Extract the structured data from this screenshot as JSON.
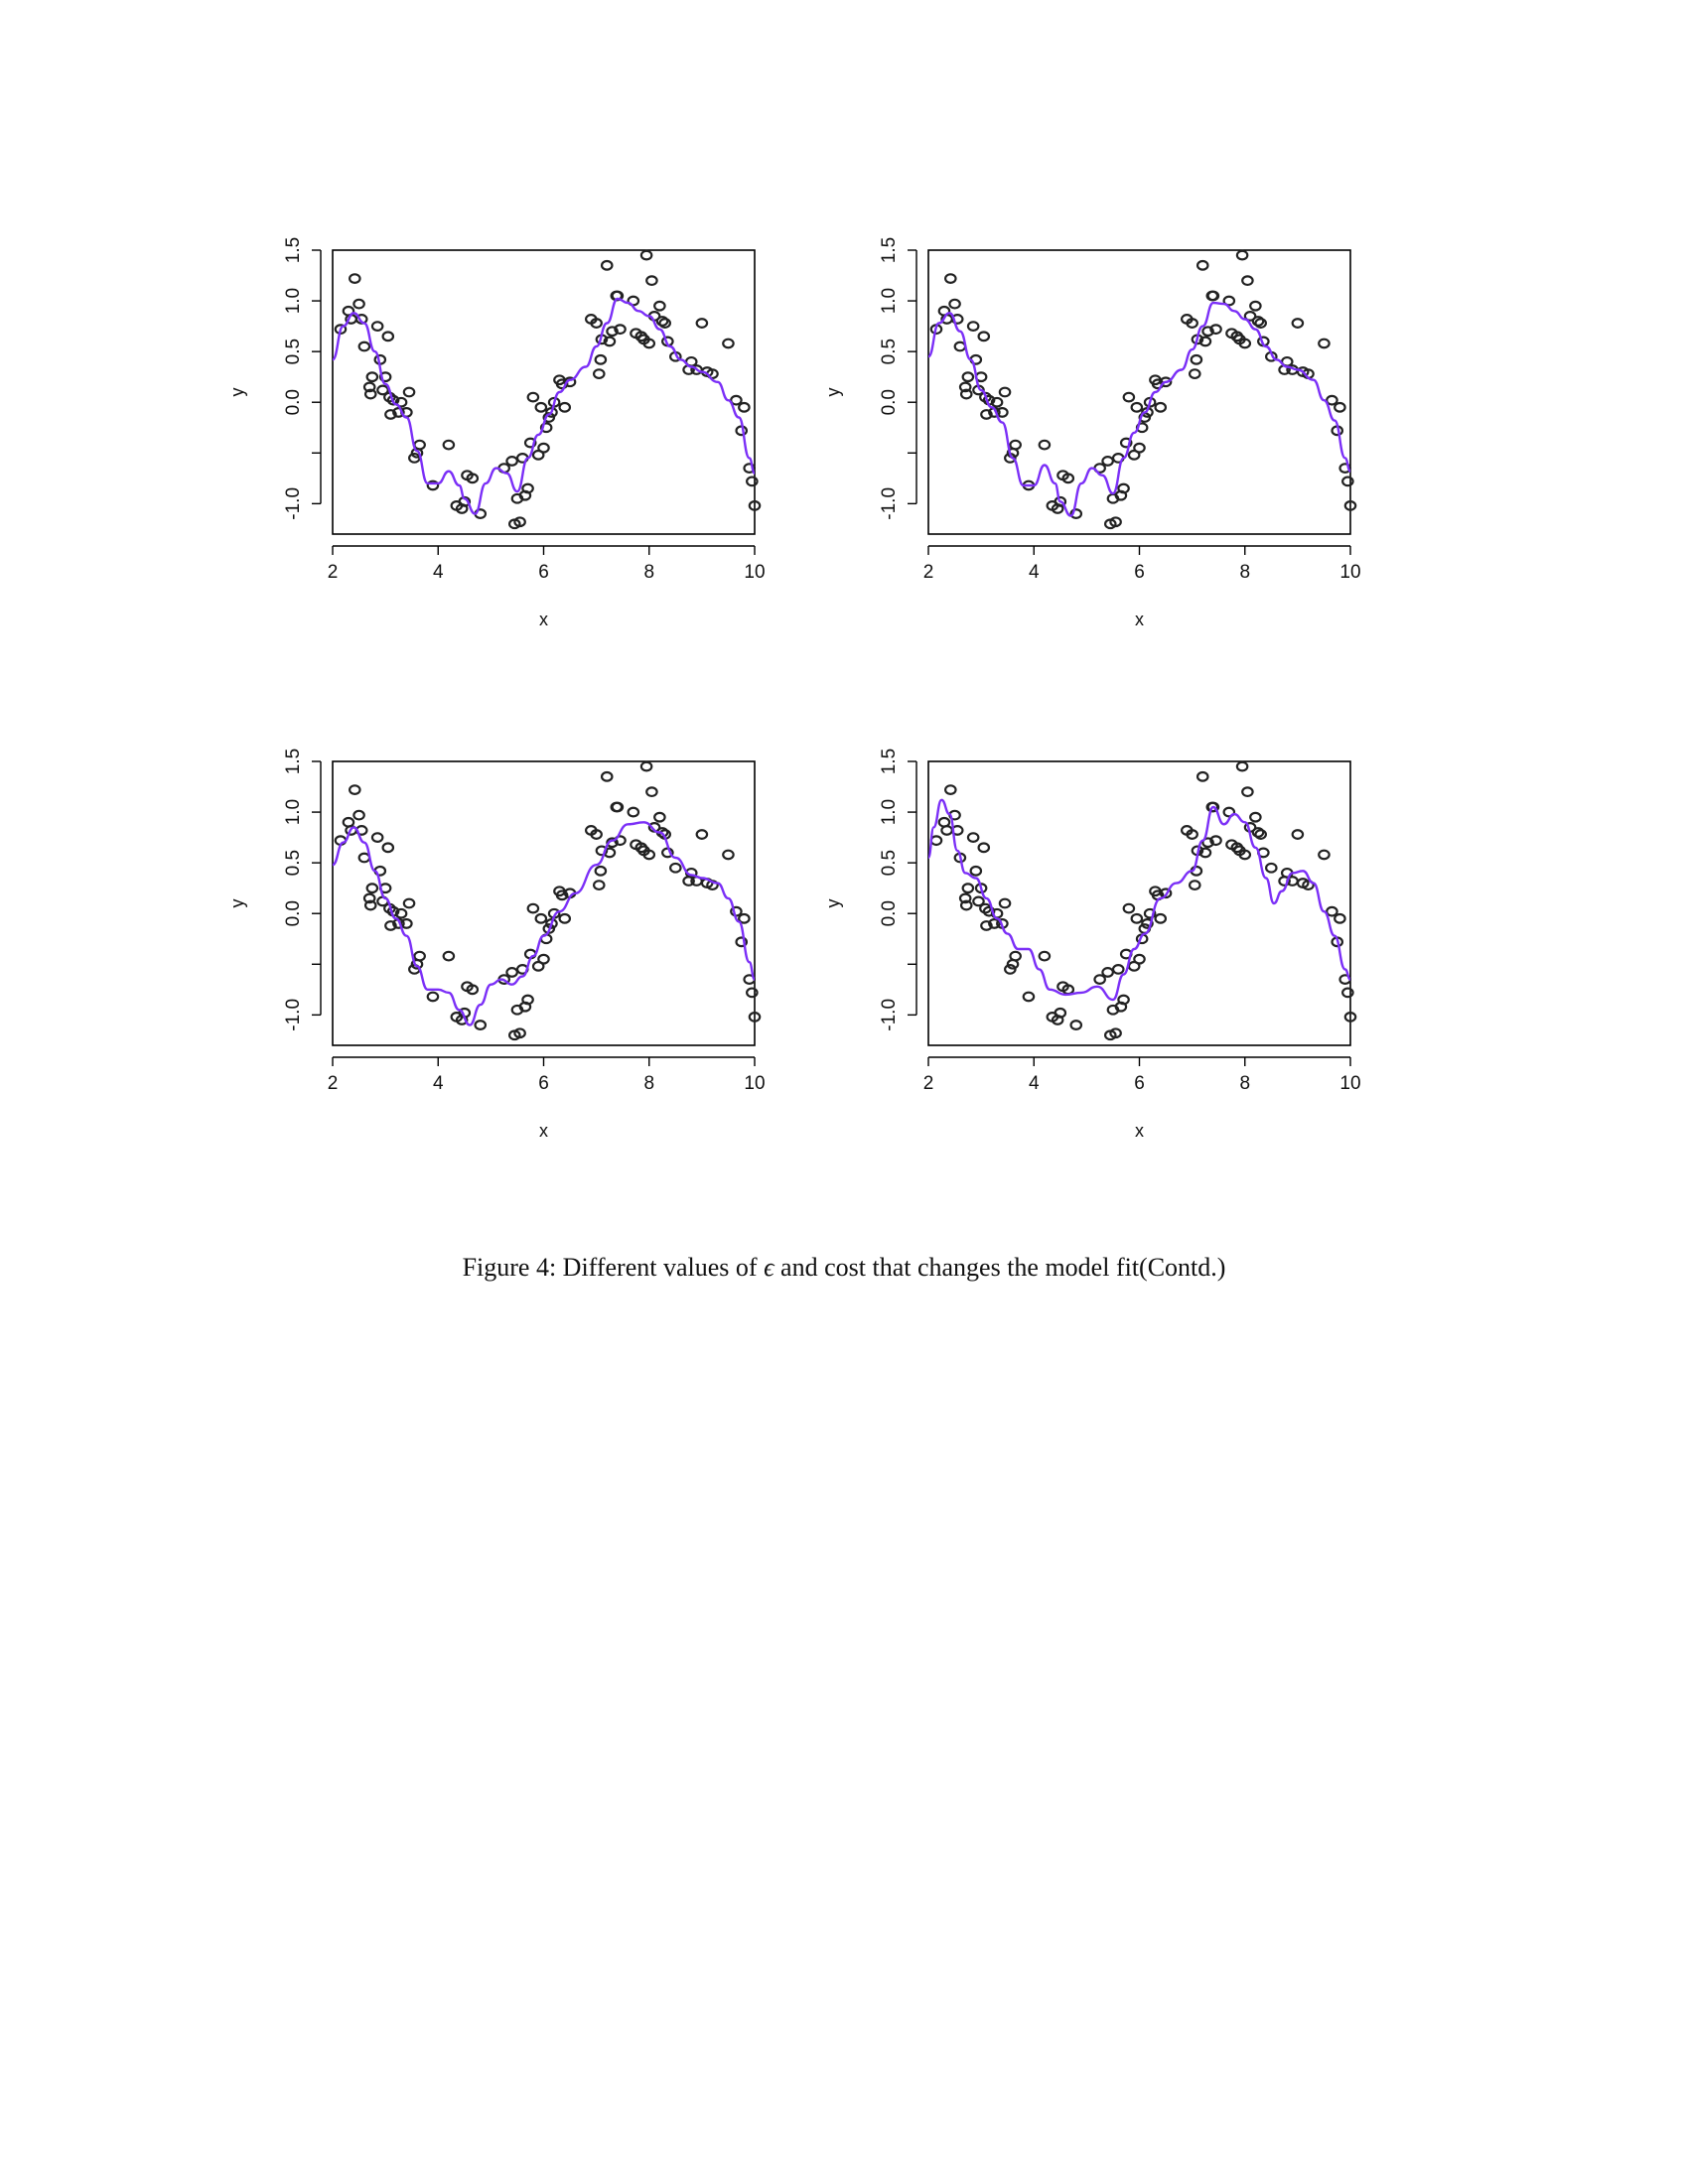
{
  "figure": {
    "caption_prefix": "Figure 4: Different values of ",
    "caption_symbol": "ϵ",
    "caption_suffix": " and cost that changes the model fit(Contd.)"
  },
  "chart_data": [
    {
      "type": "scatter",
      "panel": "top-left",
      "xlabel": "x",
      "ylabel": "y",
      "xlim": [
        2,
        10
      ],
      "ylim": [
        -1.3,
        1.5
      ],
      "xticks": [
        "2",
        "4",
        "6",
        "8",
        "10"
      ],
      "yticks": [
        "-1.0",
        "0.0",
        "0.5",
        "1.0",
        "1.5"
      ],
      "series": [
        {
          "values_ref": "shared_points"
        },
        {
          "fit": [
            [
              2.0,
              0.42
            ],
            [
              2.2,
              0.75
            ],
            [
              2.4,
              0.88
            ],
            [
              2.6,
              0.78
            ],
            [
              2.8,
              0.5
            ],
            [
              3.0,
              0.18
            ],
            [
              3.2,
              -0.02
            ],
            [
              3.4,
              -0.15
            ],
            [
              3.6,
              -0.48
            ],
            [
              3.8,
              -0.8
            ],
            [
              4.0,
              -0.8
            ],
            [
              4.2,
              -0.68
            ],
            [
              4.4,
              -0.82
            ],
            [
              4.5,
              -0.95
            ],
            [
              4.7,
              -1.1
            ],
            [
              4.9,
              -0.8
            ],
            [
              5.1,
              -0.65
            ],
            [
              5.3,
              -0.7
            ],
            [
              5.5,
              -0.88
            ],
            [
              5.7,
              -0.55
            ],
            [
              5.9,
              -0.32
            ],
            [
              6.1,
              -0.12
            ],
            [
              6.3,
              0.1
            ],
            [
              6.5,
              0.22
            ],
            [
              6.8,
              0.35
            ],
            [
              7.0,
              0.55
            ],
            [
              7.2,
              0.78
            ],
            [
              7.4,
              1.02
            ],
            [
              7.6,
              0.98
            ],
            [
              7.8,
              0.9
            ],
            [
              8.0,
              0.85
            ],
            [
              8.2,
              0.72
            ],
            [
              8.4,
              0.55
            ],
            [
              8.6,
              0.42
            ],
            [
              8.8,
              0.35
            ],
            [
              9.0,
              0.3
            ],
            [
              9.3,
              0.2
            ],
            [
              9.5,
              0.02
            ],
            [
              9.7,
              -0.15
            ],
            [
              9.9,
              -0.55
            ],
            [
              10.0,
              -0.7
            ]
          ]
        }
      ]
    },
    {
      "type": "scatter",
      "panel": "top-right",
      "xlabel": "x",
      "ylabel": "y",
      "xlim": [
        2,
        10
      ],
      "ylim": [
        -1.3,
        1.5
      ],
      "xticks": [
        "2",
        "4",
        "6",
        "8",
        "10"
      ],
      "yticks": [
        "-1.0",
        "0.0",
        "0.5",
        "1.0",
        "1.5"
      ],
      "series": [
        {
          "values_ref": "shared_points"
        },
        {
          "fit": [
            [
              2.0,
              0.45
            ],
            [
              2.2,
              0.78
            ],
            [
              2.4,
              0.88
            ],
            [
              2.6,
              0.7
            ],
            [
              2.8,
              0.42
            ],
            [
              3.0,
              0.12
            ],
            [
              3.2,
              -0.05
            ],
            [
              3.4,
              -0.2
            ],
            [
              3.6,
              -0.55
            ],
            [
              3.8,
              -0.82
            ],
            [
              4.0,
              -0.82
            ],
            [
              4.2,
              -0.62
            ],
            [
              4.4,
              -0.8
            ],
            [
              4.5,
              -0.98
            ],
            [
              4.7,
              -1.12
            ],
            [
              4.9,
              -0.8
            ],
            [
              5.1,
              -0.65
            ],
            [
              5.3,
              -0.72
            ],
            [
              5.5,
              -0.9
            ],
            [
              5.7,
              -0.55
            ],
            [
              5.9,
              -0.3
            ],
            [
              6.1,
              -0.1
            ],
            [
              6.3,
              0.1
            ],
            [
              6.5,
              0.2
            ],
            [
              6.8,
              0.32
            ],
            [
              7.0,
              0.52
            ],
            [
              7.2,
              0.75
            ],
            [
              7.4,
              0.98
            ],
            [
              7.6,
              0.97
            ],
            [
              7.8,
              0.9
            ],
            [
              8.0,
              0.82
            ],
            [
              8.2,
              0.72
            ],
            [
              8.4,
              0.55
            ],
            [
              8.6,
              0.42
            ],
            [
              8.8,
              0.35
            ],
            [
              9.0,
              0.32
            ],
            [
              9.3,
              0.22
            ],
            [
              9.5,
              0.02
            ],
            [
              9.7,
              -0.18
            ],
            [
              9.9,
              -0.55
            ],
            [
              10.0,
              -0.68
            ]
          ]
        }
      ]
    },
    {
      "type": "scatter",
      "panel": "bottom-left",
      "xlabel": "x",
      "ylabel": "y",
      "xlim": [
        2,
        10
      ],
      "ylim": [
        -1.3,
        1.5
      ],
      "xticks": [
        "2",
        "4",
        "6",
        "8",
        "10"
      ],
      "yticks": [
        "-1.0",
        "0.0",
        "0.5",
        "1.0",
        "1.5"
      ],
      "series": [
        {
          "values_ref": "shared_points"
        },
        {
          "fit": [
            [
              2.0,
              0.48
            ],
            [
              2.2,
              0.7
            ],
            [
              2.4,
              0.85
            ],
            [
              2.6,
              0.7
            ],
            [
              2.8,
              0.42
            ],
            [
              3.0,
              0.15
            ],
            [
              3.2,
              -0.05
            ],
            [
              3.4,
              -0.22
            ],
            [
              3.6,
              -0.52
            ],
            [
              3.8,
              -0.75
            ],
            [
              4.0,
              -0.75
            ],
            [
              4.2,
              -0.78
            ],
            [
              4.4,
              -0.95
            ],
            [
              4.6,
              -1.1
            ],
            [
              4.8,
              -0.9
            ],
            [
              5.0,
              -0.7
            ],
            [
              5.2,
              -0.65
            ],
            [
              5.4,
              -0.7
            ],
            [
              5.6,
              -0.62
            ],
            [
              5.8,
              -0.42
            ],
            [
              6.0,
              -0.22
            ],
            [
              6.3,
              0.02
            ],
            [
              6.6,
              0.2
            ],
            [
              7.0,
              0.48
            ],
            [
              7.3,
              0.72
            ],
            [
              7.6,
              0.88
            ],
            [
              7.9,
              0.9
            ],
            [
              8.2,
              0.8
            ],
            [
              8.5,
              0.55
            ],
            [
              8.8,
              0.38
            ],
            [
              9.0,
              0.35
            ],
            [
              9.3,
              0.3
            ],
            [
              9.5,
              0.15
            ],
            [
              9.7,
              -0.08
            ],
            [
              9.9,
              -0.48
            ],
            [
              10.0,
              -0.65
            ]
          ]
        }
      ]
    },
    {
      "type": "scatter",
      "panel": "bottom-right",
      "xlabel": "x",
      "ylabel": "y",
      "xlim": [
        2,
        10
      ],
      "ylim": [
        -1.3,
        1.5
      ],
      "xticks": [
        "2",
        "4",
        "6",
        "8",
        "10"
      ],
      "yticks": [
        "-1.0",
        "0.0",
        "0.5",
        "1.0",
        "1.5"
      ],
      "series": [
        {
          "values_ref": "shared_points"
        },
        {
          "fit": [
            [
              2.0,
              0.55
            ],
            [
              2.1,
              0.85
            ],
            [
              2.25,
              1.12
            ],
            [
              2.4,
              0.98
            ],
            [
              2.55,
              0.62
            ],
            [
              2.7,
              0.4
            ],
            [
              2.9,
              0.35
            ],
            [
              3.1,
              0.15
            ],
            [
              3.3,
              -0.05
            ],
            [
              3.5,
              -0.2
            ],
            [
              3.7,
              -0.35
            ],
            [
              3.9,
              -0.35
            ],
            [
              4.1,
              -0.55
            ],
            [
              4.3,
              -0.75
            ],
            [
              4.6,
              -0.8
            ],
            [
              4.9,
              -0.78
            ],
            [
              5.2,
              -0.72
            ],
            [
              5.5,
              -0.85
            ],
            [
              5.7,
              -0.6
            ],
            [
              5.9,
              -0.35
            ],
            [
              6.1,
              -0.2
            ],
            [
              6.4,
              0.15
            ],
            [
              6.7,
              0.3
            ],
            [
              7.0,
              0.42
            ],
            [
              7.2,
              0.72
            ],
            [
              7.4,
              1.05
            ],
            [
              7.6,
              0.88
            ],
            [
              7.8,
              0.98
            ],
            [
              8.0,
              0.9
            ],
            [
              8.2,
              0.65
            ],
            [
              8.4,
              0.35
            ],
            [
              8.55,
              0.1
            ],
            [
              8.7,
              0.22
            ],
            [
              8.9,
              0.4
            ],
            [
              9.1,
              0.42
            ],
            [
              9.3,
              0.3
            ],
            [
              9.5,
              0.02
            ],
            [
              9.7,
              -0.22
            ],
            [
              9.9,
              -0.55
            ],
            [
              10.0,
              -0.65
            ]
          ]
        }
      ]
    }
  ],
  "shared_points": [
    [
      2.15,
      0.72
    ],
    [
      2.3,
      0.9
    ],
    [
      2.35,
      0.82
    ],
    [
      2.42,
      1.22
    ],
    [
      2.5,
      0.97
    ],
    [
      2.55,
      0.82
    ],
    [
      2.6,
      0.55
    ],
    [
      2.7,
      0.15
    ],
    [
      2.72,
      0.08
    ],
    [
      2.75,
      0.25
    ],
    [
      2.85,
      0.75
    ],
    [
      2.9,
      0.42
    ],
    [
      2.95,
      0.12
    ],
    [
      3.0,
      0.25
    ],
    [
      3.05,
      0.65
    ],
    [
      3.08,
      0.05
    ],
    [
      3.1,
      -0.12
    ],
    [
      3.15,
      0.02
    ],
    [
      3.25,
      -0.1
    ],
    [
      3.3,
      0.0
    ],
    [
      3.4,
      -0.1
    ],
    [
      3.45,
      0.1
    ],
    [
      3.55,
      -0.55
    ],
    [
      3.6,
      -0.5
    ],
    [
      3.65,
      -0.42
    ],
    [
      3.9,
      -0.82
    ],
    [
      4.2,
      -0.42
    ],
    [
      4.35,
      -1.02
    ],
    [
      4.45,
      -1.05
    ],
    [
      4.5,
      -0.98
    ],
    [
      4.55,
      -0.72
    ],
    [
      4.65,
      -0.75
    ],
    [
      4.8,
      -1.1
    ],
    [
      5.25,
      -0.65
    ],
    [
      5.4,
      -0.58
    ],
    [
      5.45,
      -1.2
    ],
    [
      5.5,
      -0.95
    ],
    [
      5.55,
      -1.18
    ],
    [
      5.6,
      -0.55
    ],
    [
      5.65,
      -0.92
    ],
    [
      5.7,
      -0.85
    ],
    [
      5.75,
      -0.4
    ],
    [
      5.8,
      0.05
    ],
    [
      5.9,
      -0.52
    ],
    [
      5.95,
      -0.05
    ],
    [
      6.0,
      -0.45
    ],
    [
      6.05,
      -0.25
    ],
    [
      6.1,
      -0.15
    ],
    [
      6.15,
      -0.1
    ],
    [
      6.2,
      0.0
    ],
    [
      6.3,
      0.22
    ],
    [
      6.35,
      0.18
    ],
    [
      6.4,
      -0.05
    ],
    [
      6.5,
      0.2
    ],
    [
      6.9,
      0.82
    ],
    [
      7.0,
      0.78
    ],
    [
      7.05,
      0.28
    ],
    [
      7.08,
      0.42
    ],
    [
      7.1,
      0.62
    ],
    [
      7.2,
      1.35
    ],
    [
      7.25,
      0.6
    ],
    [
      7.3,
      0.7
    ],
    [
      7.38,
      1.05
    ],
    [
      7.4,
      1.05
    ],
    [
      7.45,
      0.72
    ],
    [
      7.7,
      1.0
    ],
    [
      7.75,
      0.68
    ],
    [
      7.85,
      0.65
    ],
    [
      7.9,
      0.62
    ],
    [
      7.95,
      1.45
    ],
    [
      8.0,
      0.58
    ],
    [
      8.05,
      1.2
    ],
    [
      8.1,
      0.85
    ],
    [
      8.2,
      0.95
    ],
    [
      8.25,
      0.8
    ],
    [
      8.3,
      0.78
    ],
    [
      8.35,
      0.6
    ],
    [
      8.5,
      0.45
    ],
    [
      8.75,
      0.32
    ],
    [
      8.8,
      0.4
    ],
    [
      8.9,
      0.32
    ],
    [
      9.0,
      0.78
    ],
    [
      9.1,
      0.3
    ],
    [
      9.2,
      0.28
    ],
    [
      9.5,
      0.58
    ],
    [
      9.65,
      0.02
    ],
    [
      9.75,
      -0.28
    ],
    [
      9.8,
      -0.05
    ],
    [
      9.9,
      -0.65
    ],
    [
      9.95,
      -0.78
    ],
    [
      10.0,
      -1.02
    ]
  ],
  "colors": {
    "fit": "#7b2ff7",
    "points": "#222222",
    "axis": "#000000"
  }
}
